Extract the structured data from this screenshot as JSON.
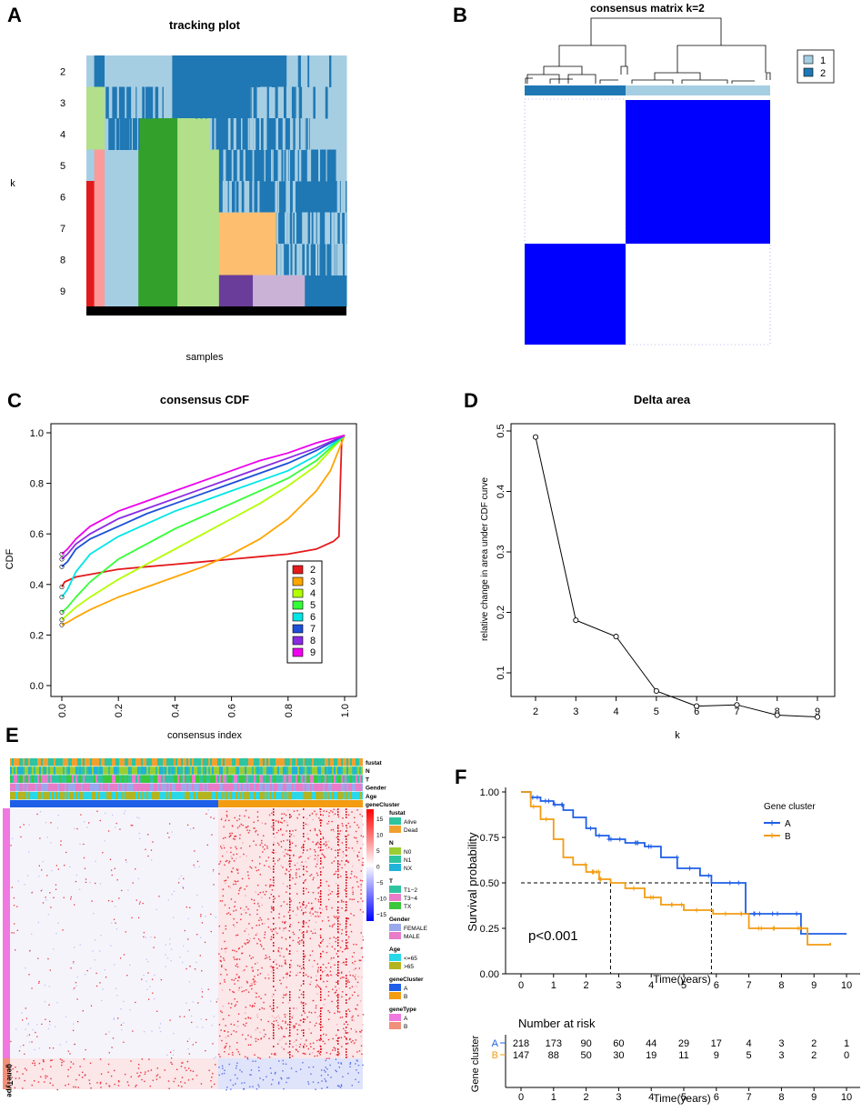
{
  "panels": {
    "A": {
      "letter": "A",
      "title": "tracking plot",
      "xlabel": "samples",
      "ylabel": "k",
      "k_labels": [
        "2",
        "3",
        "4",
        "5",
        "6",
        "7",
        "8",
        "9"
      ]
    },
    "B": {
      "letter": "B",
      "title": "consensus matrix k=2",
      "legend": [
        "1",
        "2"
      ],
      "colors": {
        "c1": "#a6cee3",
        "c2": "#1f78b4",
        "block": "#0000ff"
      }
    }
  },
  "chart_data": [
    {
      "id": "C",
      "letter": "C",
      "type": "line",
      "title": "consensus CDF",
      "xlabel": "consensus index",
      "ylabel": "CDF",
      "xlim": [
        0,
        1
      ],
      "ylim": [
        0,
        1
      ],
      "xticks": [
        "0.0",
        "0.2",
        "0.4",
        "0.6",
        "0.8",
        "1.0"
      ],
      "yticks": [
        "0.0",
        "0.2",
        "0.4",
        "0.6",
        "0.8",
        "1.0"
      ],
      "legend_position": "bottom-right",
      "series": [
        {
          "name": "2",
          "color": "#e41a1c",
          "points": [
            [
              0,
              0.39
            ],
            [
              0.01,
              0.41
            ],
            [
              0.05,
              0.43
            ],
            [
              0.1,
              0.44
            ],
            [
              0.2,
              0.46
            ],
            [
              0.3,
              0.47
            ],
            [
              0.4,
              0.48
            ],
            [
              0.5,
              0.49
            ],
            [
              0.6,
              0.5
            ],
            [
              0.7,
              0.51
            ],
            [
              0.8,
              0.52
            ],
            [
              0.9,
              0.54
            ],
            [
              0.96,
              0.57
            ],
            [
              0.98,
              0.59
            ],
            [
              0.985,
              0.8
            ],
            [
              0.99,
              0.98
            ],
            [
              1,
              0.99
            ]
          ]
        },
        {
          "name": "3",
          "color": "#ffa500",
          "points": [
            [
              0,
              0.24
            ],
            [
              0.02,
              0.25
            ],
            [
              0.05,
              0.27
            ],
            [
              0.1,
              0.3
            ],
            [
              0.2,
              0.35
            ],
            [
              0.3,
              0.39
            ],
            [
              0.4,
              0.43
            ],
            [
              0.5,
              0.47
            ],
            [
              0.6,
              0.52
            ],
            [
              0.7,
              0.58
            ],
            [
              0.8,
              0.66
            ],
            [
              0.9,
              0.77
            ],
            [
              0.95,
              0.85
            ],
            [
              1,
              0.99
            ]
          ]
        },
        {
          "name": "4",
          "color": "#b2ff00",
          "points": [
            [
              0,
              0.26
            ],
            [
              0.02,
              0.28
            ],
            [
              0.05,
              0.31
            ],
            [
              0.1,
              0.35
            ],
            [
              0.2,
              0.42
            ],
            [
              0.3,
              0.48
            ],
            [
              0.4,
              0.54
            ],
            [
              0.5,
              0.6
            ],
            [
              0.6,
              0.66
            ],
            [
              0.7,
              0.72
            ],
            [
              0.8,
              0.79
            ],
            [
              0.9,
              0.87
            ],
            [
              1,
              0.99
            ]
          ]
        },
        {
          "name": "5",
          "color": "#33ff33",
          "points": [
            [
              0,
              0.29
            ],
            [
              0.02,
              0.31
            ],
            [
              0.05,
              0.35
            ],
            [
              0.1,
              0.41
            ],
            [
              0.2,
              0.5
            ],
            [
              0.3,
              0.56
            ],
            [
              0.4,
              0.62
            ],
            [
              0.5,
              0.67
            ],
            [
              0.6,
              0.72
            ],
            [
              0.7,
              0.77
            ],
            [
              0.8,
              0.82
            ],
            [
              0.9,
              0.89
            ],
            [
              1,
              0.99
            ]
          ]
        },
        {
          "name": "6",
          "color": "#00e5e5",
          "points": [
            [
              0,
              0.35
            ],
            [
              0.02,
              0.38
            ],
            [
              0.05,
              0.45
            ],
            [
              0.1,
              0.52
            ],
            [
              0.2,
              0.59
            ],
            [
              0.3,
              0.64
            ],
            [
              0.4,
              0.69
            ],
            [
              0.5,
              0.73
            ],
            [
              0.6,
              0.77
            ],
            [
              0.7,
              0.81
            ],
            [
              0.8,
              0.85
            ],
            [
              0.9,
              0.91
            ],
            [
              1,
              0.99
            ]
          ]
        },
        {
          "name": "7",
          "color": "#1d4fd8",
          "points": [
            [
              0,
              0.47
            ],
            [
              0.02,
              0.49
            ],
            [
              0.05,
              0.54
            ],
            [
              0.1,
              0.58
            ],
            [
              0.2,
              0.63
            ],
            [
              0.3,
              0.68
            ],
            [
              0.4,
              0.72
            ],
            [
              0.5,
              0.76
            ],
            [
              0.6,
              0.8
            ],
            [
              0.7,
              0.84
            ],
            [
              0.8,
              0.88
            ],
            [
              0.9,
              0.93
            ],
            [
              1,
              0.99
            ]
          ]
        },
        {
          "name": "8",
          "color": "#8a2be2",
          "points": [
            [
              0,
              0.5
            ],
            [
              0.02,
              0.52
            ],
            [
              0.05,
              0.56
            ],
            [
              0.1,
              0.6
            ],
            [
              0.2,
              0.66
            ],
            [
              0.3,
              0.7
            ],
            [
              0.4,
              0.74
            ],
            [
              0.5,
              0.78
            ],
            [
              0.6,
              0.82
            ],
            [
              0.7,
              0.86
            ],
            [
              0.8,
              0.9
            ],
            [
              0.9,
              0.94
            ],
            [
              1,
              0.99
            ]
          ]
        },
        {
          "name": "9",
          "color": "#ee00ee",
          "points": [
            [
              0,
              0.52
            ],
            [
              0.02,
              0.54
            ],
            [
              0.05,
              0.58
            ],
            [
              0.1,
              0.63
            ],
            [
              0.2,
              0.69
            ],
            [
              0.3,
              0.73
            ],
            [
              0.4,
              0.77
            ],
            [
              0.5,
              0.81
            ],
            [
              0.6,
              0.85
            ],
            [
              0.7,
              0.89
            ],
            [
              0.8,
              0.92
            ],
            [
              0.9,
              0.96
            ],
            [
              1,
              0.99
            ]
          ]
        }
      ]
    },
    {
      "id": "D",
      "letter": "D",
      "type": "line",
      "title": "Delta area",
      "xlabel": "k",
      "ylabel": "relative change in area under CDF curve",
      "xlim": [
        2,
        9
      ],
      "ylim": [
        0.025,
        0.5
      ],
      "xticks": [
        "2",
        "3",
        "4",
        "5",
        "6",
        "7",
        "8",
        "9"
      ],
      "yticks": [
        "0.1",
        "0.2",
        "0.3",
        "0.4",
        "0.5"
      ],
      "x": [
        2,
        3,
        4,
        5,
        6,
        7,
        8,
        9
      ],
      "y": [
        0.49,
        0.187,
        0.16,
        0.07,
        0.045,
        0.047,
        0.03,
        0.027
      ]
    },
    {
      "id": "F",
      "letter": "F",
      "type": "line",
      "title": "",
      "xlabel": "Time(years)",
      "ylabel": "Survival probability",
      "xlim": [
        0,
        10
      ],
      "ylim": [
        0,
        1
      ],
      "xticks": [
        "0",
        "1",
        "2",
        "3",
        "4",
        "5",
        "6",
        "7",
        "8",
        "9",
        "10"
      ],
      "yticks": [
        "0.00",
        "0.25",
        "0.50",
        "0.75",
        "1.00"
      ],
      "legend_title": "Gene cluster",
      "pvalue": "p<0.001",
      "median_survival": [
        5.85,
        2.75
      ],
      "series": [
        {
          "name": "A",
          "color": "#1f5fe8",
          "points": [
            [
              0,
              1
            ],
            [
              0.3,
              0.97
            ],
            [
              0.6,
              0.95
            ],
            [
              1,
              0.93
            ],
            [
              1.3,
              0.9
            ],
            [
              1.6,
              0.86
            ],
            [
              2,
              0.8
            ],
            [
              2.3,
              0.76
            ],
            [
              2.7,
              0.74
            ],
            [
              3.2,
              0.72
            ],
            [
              3.8,
              0.7
            ],
            [
              4.3,
              0.64
            ],
            [
              4.8,
              0.58
            ],
            [
              5.5,
              0.54
            ],
            [
              5.85,
              0.5
            ],
            [
              6.9,
              0.5
            ],
            [
              6.9,
              0.33
            ],
            [
              8.6,
              0.33
            ],
            [
              8.6,
              0.22
            ],
            [
              10,
              0.22
            ]
          ]
        },
        {
          "name": "B",
          "color": "#f39c12",
          "points": [
            [
              0,
              1
            ],
            [
              0.3,
              0.92
            ],
            [
              0.6,
              0.85
            ],
            [
              1,
              0.74
            ],
            [
              1.3,
              0.64
            ],
            [
              1.6,
              0.6
            ],
            [
              2,
              0.56
            ],
            [
              2.4,
              0.52
            ],
            [
              2.75,
              0.5
            ],
            [
              3.2,
              0.47
            ],
            [
              3.8,
              0.42
            ],
            [
              4.3,
              0.38
            ],
            [
              5,
              0.35
            ],
            [
              5.9,
              0.35
            ],
            [
              5.9,
              0.33
            ],
            [
              7,
              0.33
            ],
            [
              7,
              0.25
            ],
            [
              8.8,
              0.25
            ],
            [
              8.8,
              0.16
            ],
            [
              9.5,
              0.17
            ]
          ]
        }
      ],
      "risk_table": {
        "title": "Number at risk",
        "ylabel": "Gene cluster",
        "xlabel": "Time(years)",
        "groups": [
          {
            "name": "A",
            "color": "#1f5fe8",
            "counts": [
              "218",
              "173",
              "90",
              "60",
              "44",
              "29",
              "17",
              "4",
              "3",
              "2",
              "1"
            ]
          },
          {
            "name": "B",
            "color": "#f39c12",
            "counts": [
              "147",
              "88",
              "50",
              "30",
              "19",
              "11",
              "9",
              "5",
              "3",
              "2",
              "0"
            ]
          }
        ]
      }
    }
  ],
  "heatmap": {
    "letter": "E",
    "annotation_rows": [
      "fustat",
      "N",
      "T",
      "Gender",
      "Age",
      "geneCluster"
    ],
    "side_label": "geneType",
    "colorbar_ticks": [
      "15",
      "10",
      "5",
      "0",
      "−5",
      "−10",
      "−15"
    ],
    "legend_groups": [
      {
        "title": "fustat",
        "items": [
          {
            "label": "Alive",
            "color": "#2ec4a0"
          },
          {
            "label": "Dead",
            "color": "#f0a030"
          }
        ]
      },
      {
        "title": "N",
        "items": [
          {
            "label": "N0",
            "color": "#9acd32"
          },
          {
            "label": "N1",
            "color": "#2ec4a0"
          },
          {
            "label": "NX",
            "color": "#20b2d8"
          }
        ]
      },
      {
        "title": "T",
        "items": [
          {
            "label": "T1−2",
            "color": "#2ec4a0"
          },
          {
            "label": "T3−4",
            "color": "#e87cc8"
          },
          {
            "label": "TX",
            "color": "#3cc83c"
          }
        ]
      },
      {
        "title": "Gender",
        "items": [
          {
            "label": "FEMALE",
            "color": "#9aa8ee"
          },
          {
            "label": "MALE",
            "color": "#e87cc8"
          }
        ]
      },
      {
        "title": "Age",
        "items": [
          {
            "label": "<=65",
            "color": "#28d8e8"
          },
          {
            "label": ">65",
            "color": "#b4b420"
          }
        ]
      },
      {
        "title": "geneCluster",
        "items": [
          {
            "label": "A",
            "color": "#1f5fe8"
          },
          {
            "label": "B",
            "color": "#f39c12"
          }
        ]
      },
      {
        "title": "geneType",
        "items": [
          {
            "label": "A",
            "color": "#f078e0"
          },
          {
            "label": "B",
            "color": "#f0907a"
          }
        ]
      }
    ]
  }
}
